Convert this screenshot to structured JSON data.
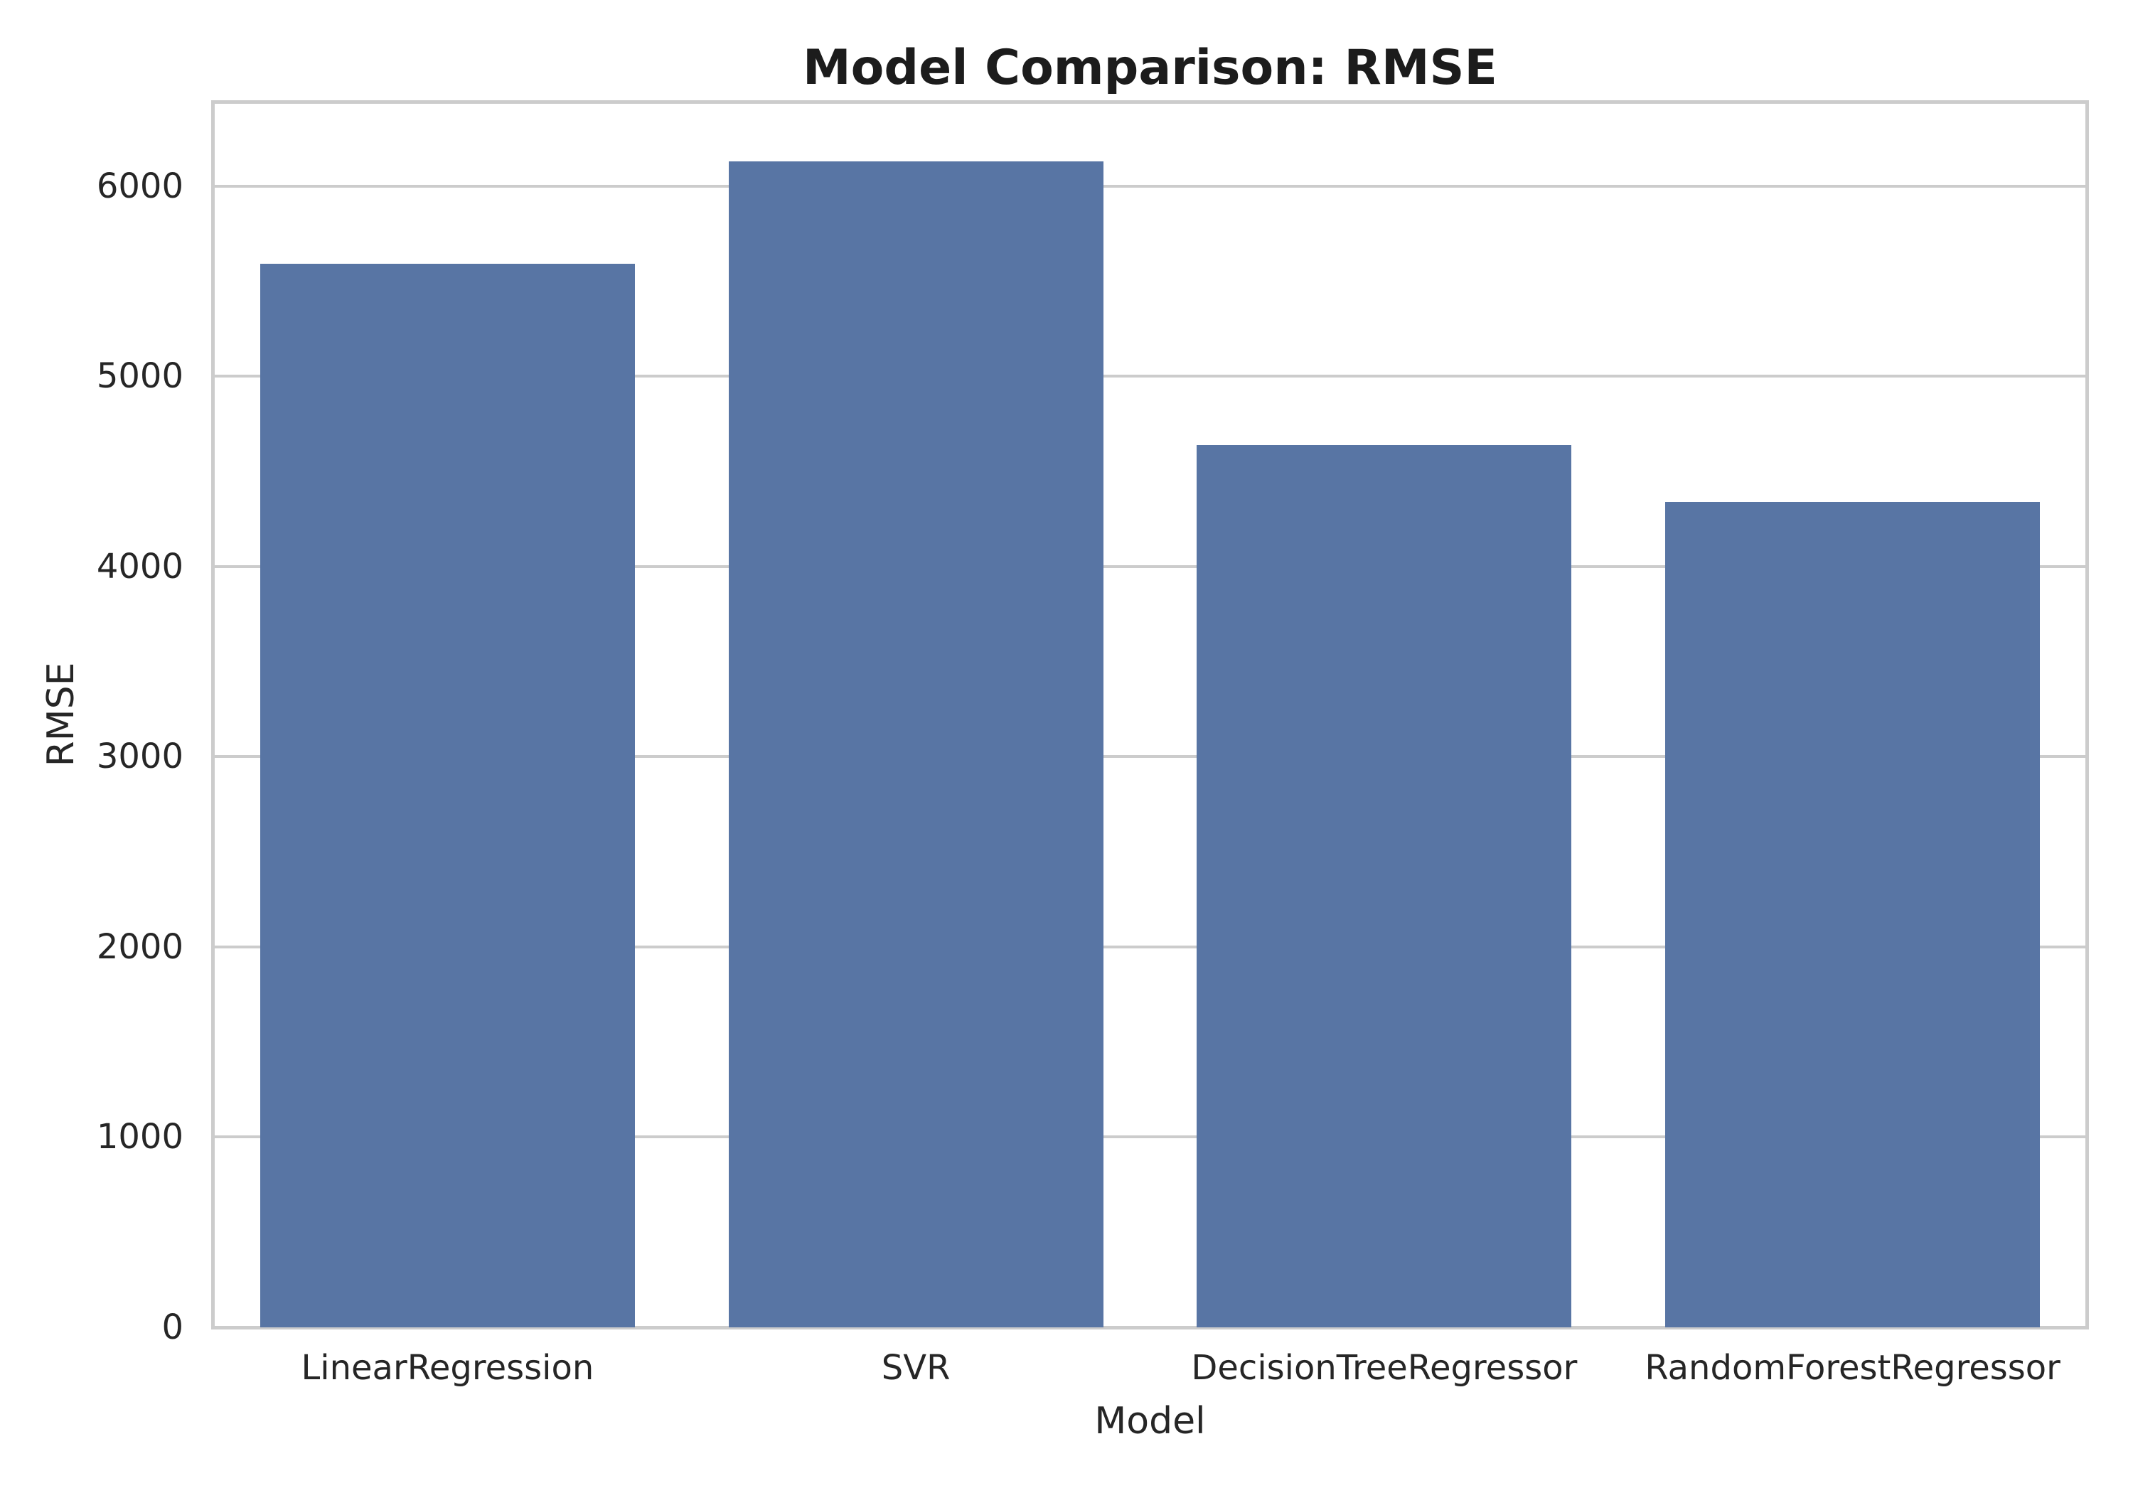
{
  "chart_data": {
    "type": "bar",
    "title": "Model Comparison: RMSE",
    "xlabel": "Model",
    "ylabel": "RMSE",
    "categories": [
      "LinearRegression",
      "SVR",
      "DecisionTreeRegressor",
      "RandomForestRegressor"
    ],
    "values": [
      5590,
      6130,
      4640,
      4340
    ],
    "yticks": [
      0,
      1000,
      2000,
      3000,
      4000,
      5000,
      6000
    ],
    "ylim": [
      0,
      6440
    ],
    "grid": true,
    "legend_position": "none",
    "bar_width_fraction": 0.8,
    "colors": {
      "bar": "#5875a4",
      "grid": "#cccccc",
      "spine": "#cccccc",
      "text": "#262626",
      "background": "#ffffff"
    }
  }
}
